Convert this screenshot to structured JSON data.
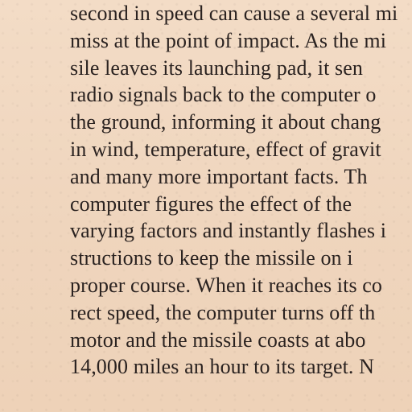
{
  "document": {
    "lines": [
      "second in speed can cause a several mi",
      "miss at the point of impact. As the mi",
      "sile leaves its launching pad, it sen",
      "radio signals back to the computer o",
      "the ground, informing it about chang",
      "in wind, temperature, effect of gravit",
      "and many more important facts. Th",
      "computer figures the effect of the",
      "varying factors and instantly flashes i",
      "structions to keep the missile on i",
      "proper course. When it reaches its co",
      "rect speed, the computer turns off th",
      "motor and the missile coasts at abo",
      "14,000 miles an hour to its target. N"
    ]
  }
}
